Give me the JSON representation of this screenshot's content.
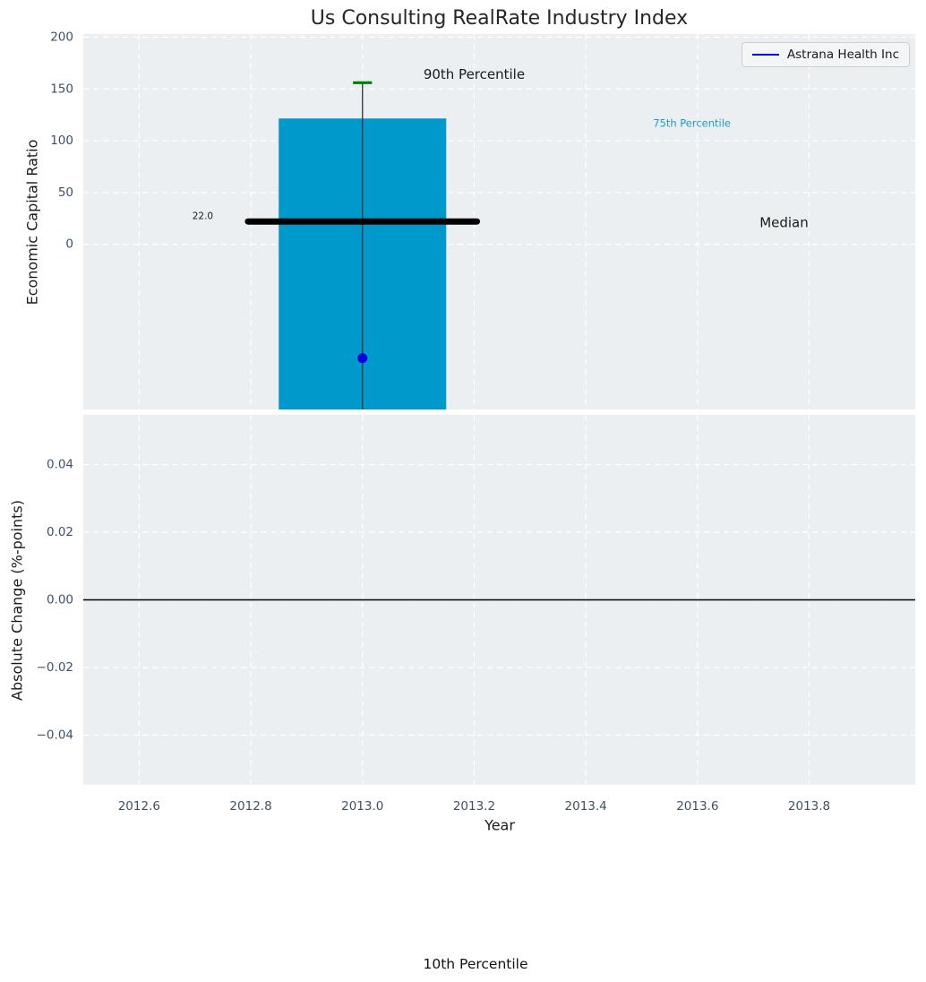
{
  "chart_data": {
    "type": "boxplot",
    "title": "Us Consulting RealRate Industry Index",
    "xlabel": "Year",
    "x_axis": {
      "lim": [
        2012.5,
        2013.99
      ],
      "tick_values": [
        2012.6,
        2012.8,
        2013.0,
        2013.2,
        2013.4,
        2013.6,
        2013.8
      ],
      "tick_labels": [
        "2012.6",
        "2012.8",
        "2013.0",
        "2013.2",
        "2013.4",
        "2013.6",
        "2013.8"
      ]
    },
    "subplot_top": {
      "ylabel": "Economic Capital Ratio",
      "ylim": [
        -159.5,
        203
      ],
      "tick_values": [
        0,
        50,
        100,
        150,
        200
      ],
      "tick_labels": [
        "0",
        "50",
        "100",
        "150",
        "200"
      ],
      "grid": true,
      "box": {
        "center_x": 2013.0,
        "bar_width": 0.3,
        "bar_top_p75": 121.5,
        "bar_extends_below_axis": true,
        "median": 22.0,
        "median_halfwidth": 0.205,
        "p90_cap": 156,
        "cap_halfwidth": 0.017,
        "company_point": {
          "x": 2013.0,
          "y": -110
        }
      },
      "annotations": [
        {
          "text": "90th Percentile",
          "x": 2013.2,
          "y": 164,
          "color": "#1a1a1a",
          "size": 15
        },
        {
          "text": "75th Percentile",
          "x": 2013.59,
          "y": 117,
          "color": "#1a9cce",
          "size": 11.5
        },
        {
          "text": "Median",
          "x": 2013.755,
          "y": 21,
          "color": "#1a1a1a",
          "size": 15
        },
        {
          "text": "22.0",
          "x": 2012.714,
          "y": 27,
          "color": "#1a1a1a",
          "size": 10.5
        }
      ]
    },
    "subplot_bottom": {
      "ylabel": "Absolute Change (%-points)",
      "ylim": [
        -0.0547,
        0.0547
      ],
      "tick_values": [
        0.04,
        0.02,
        0.0,
        -0.02,
        -0.04
      ],
      "tick_labels": [
        "0.04",
        "0.02",
        "0.00",
        "−0.02",
        "−0.04"
      ],
      "grid": true,
      "zero_line": true
    },
    "legend": {
      "label": "Astrana Health Inc",
      "position": "upper right"
    },
    "bottom_annotation": "10th Percentile",
    "colors": {
      "axes_background": "#eceff1",
      "grid": "#ffffff",
      "bar": "#0099cc",
      "median_line": "#000000",
      "whisker": "#3d3d3d",
      "p90_cap": "#008000",
      "company_marker": "#0000e0",
      "legend_line": "#0000e0",
      "tick_label": "#3d5166",
      "zero_line": "#000000"
    }
  }
}
